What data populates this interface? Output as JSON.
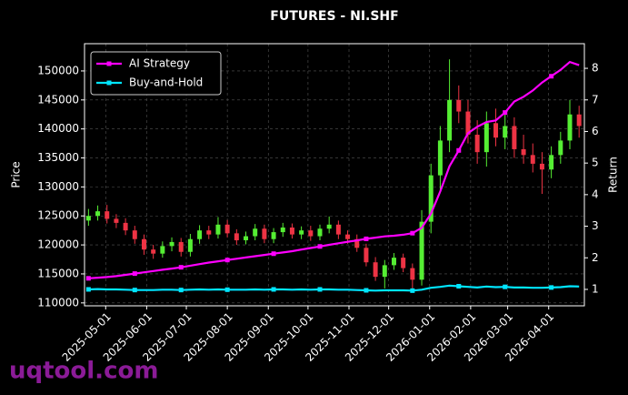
{
  "chart_data": {
    "type": "candlestick",
    "title": "FUTURES - NI.SHF",
    "ylabel": "Price",
    "y2label": "Return",
    "watermark": "uqtool.com",
    "x": [
      "2025-04-18",
      "2025-04-25",
      "2025-05-02",
      "2025-05-09",
      "2025-05-16",
      "2025-05-23",
      "2025-05-30",
      "2025-06-06",
      "2025-06-13",
      "2025-06-20",
      "2025-06-27",
      "2025-07-04",
      "2025-07-11",
      "2025-07-18",
      "2025-07-25",
      "2025-08-01",
      "2025-08-08",
      "2025-08-15",
      "2025-08-22",
      "2025-08-29",
      "2025-09-05",
      "2025-09-12",
      "2025-09-19",
      "2025-09-26",
      "2025-10-03",
      "2025-10-10",
      "2025-10-17",
      "2025-10-24",
      "2025-10-31",
      "2025-11-07",
      "2025-11-14",
      "2025-11-21",
      "2025-11-28",
      "2025-12-05",
      "2025-12-12",
      "2025-12-19",
      "2025-12-26",
      "2026-01-02",
      "2026-01-09",
      "2026-01-16",
      "2026-01-23",
      "2026-01-30",
      "2026-02-06",
      "2026-02-13",
      "2026-02-20",
      "2026-02-27",
      "2026-03-06",
      "2026-03-13",
      "2026-03-20",
      "2026-03-27",
      "2026-04-03",
      "2026-04-10",
      "2026-04-17",
      "2026-04-24"
    ],
    "candles": {
      "open": [
        124200,
        125000,
        125800,
        124500,
        123800,
        122500,
        121000,
        119200,
        118500,
        119800,
        120500,
        118800,
        121000,
        122500,
        121800,
        123500,
        122000,
        120800,
        121500,
        122800,
        121000,
        122200,
        123000,
        121800,
        122500,
        121500,
        122800,
        123500,
        121800,
        121000,
        119500,
        117000,
        114500,
        116500,
        117800,
        116000,
        114000,
        124000,
        132000,
        138000,
        145000,
        143000,
        139000,
        136000,
        141000,
        138500,
        140500,
        136500,
        135500,
        134000,
        133000,
        135500,
        138000,
        142500
      ],
      "high": [
        126200,
        126800,
        126900,
        125300,
        124600,
        123300,
        121800,
        120000,
        120600,
        121300,
        121200,
        121900,
        123400,
        123300,
        124800,
        124300,
        122700,
        122300,
        123600,
        123500,
        122900,
        123800,
        123700,
        123200,
        123300,
        123500,
        124900,
        124200,
        122500,
        121800,
        120200,
        117900,
        117400,
        118600,
        118500,
        116800,
        126000,
        134000,
        140500,
        152000,
        147500,
        145000,
        141500,
        143000,
        143500,
        142500,
        142000,
        139000,
        137500,
        136000,
        137000,
        139500,
        145000,
        144000
      ],
      "low": [
        123300,
        124200,
        123700,
        122900,
        121700,
        120200,
        118300,
        117600,
        117800,
        118900,
        118000,
        118000,
        120200,
        121000,
        121100,
        121300,
        120000,
        120100,
        120800,
        120300,
        120300,
        121400,
        121100,
        121000,
        120700,
        120800,
        122000,
        121000,
        120200,
        118800,
        116300,
        113800,
        112500,
        115700,
        115300,
        112000,
        113000,
        122000,
        129500,
        136000,
        141000,
        137500,
        134000,
        133500,
        137000,
        136500,
        135000,
        134000,
        132500,
        128800,
        131500,
        134000,
        136500,
        138500
      ],
      "close": [
        125000,
        125800,
        124500,
        123800,
        122500,
        121000,
        119200,
        118500,
        119800,
        120500,
        118800,
        121000,
        122500,
        121800,
        123500,
        122000,
        120800,
        121500,
        122800,
        121000,
        122200,
        123000,
        121800,
        122500,
        121500,
        122800,
        123500,
        121800,
        121000,
        119500,
        117000,
        114500,
        116500,
        117800,
        116000,
        114000,
        124000,
        132000,
        138000,
        145000,
        143000,
        139000,
        136000,
        141000,
        138500,
        140500,
        136500,
        135500,
        134000,
        133000,
        135500,
        138000,
        142500,
        140500
      ],
      "up_color": "#55ee33",
      "down_color": "#ee3344"
    },
    "series": [
      {
        "name": "AI Strategy",
        "color": "#ff00ff",
        "axis": "y2",
        "values": [
          1.35,
          1.37,
          1.39,
          1.42,
          1.46,
          1.5,
          1.54,
          1.58,
          1.62,
          1.66,
          1.7,
          1.75,
          1.8,
          1.85,
          1.89,
          1.93,
          1.97,
          2.01,
          2.05,
          2.09,
          2.13,
          2.17,
          2.21,
          2.26,
          2.31,
          2.36,
          2.41,
          2.46,
          2.51,
          2.55,
          2.6,
          2.64,
          2.68,
          2.7,
          2.73,
          2.78,
          2.95,
          3.4,
          4.1,
          4.9,
          5.4,
          5.95,
          6.15,
          6.3,
          6.35,
          6.6,
          6.95,
          7.1,
          7.3,
          7.55,
          7.75,
          7.95,
          8.2,
          8.1
        ]
      },
      {
        "name": "Buy-and-Hold",
        "color": "#00e5ff",
        "axis": "y2",
        "values": [
          1.0,
          1.01,
          1.0,
          1.0,
          0.99,
          0.98,
          0.98,
          0.98,
          0.99,
          0.99,
          0.98,
          0.99,
          1.0,
          0.99,
          1.0,
          0.99,
          0.99,
          0.99,
          1.0,
          0.99,
          1.0,
          1.0,
          0.99,
          1.0,
          0.99,
          1.0,
          1.0,
          0.99,
          0.99,
          0.98,
          0.97,
          0.96,
          0.97,
          0.97,
          0.97,
          0.96,
          0.99,
          1.05,
          1.08,
          1.12,
          1.1,
          1.08,
          1.06,
          1.09,
          1.07,
          1.08,
          1.06,
          1.06,
          1.05,
          1.05,
          1.06,
          1.07,
          1.1,
          1.09
        ]
      }
    ],
    "markevery": 5,
    "xlim": [
      "2025-04-15",
      "2026-04-28"
    ],
    "xticks": [
      "2025-05-01",
      "2025-06-01",
      "2025-07-01",
      "2025-08-01",
      "2025-09-01",
      "2025-10-01",
      "2025-11-01",
      "2025-12-01",
      "2026-01-01",
      "2026-02-01",
      "2026-03-01",
      "2026-04-01"
    ],
    "ylim": [
      109500,
      154700
    ],
    "yticks": [
      110000,
      115000,
      120000,
      125000,
      130000,
      135000,
      140000,
      145000,
      150000
    ],
    "y2lim": [
      0.48,
      8.78
    ],
    "y2ticks": [
      1,
      2,
      3,
      4,
      5,
      6,
      7,
      8
    ],
    "grid": true,
    "legend": "upper left"
  }
}
